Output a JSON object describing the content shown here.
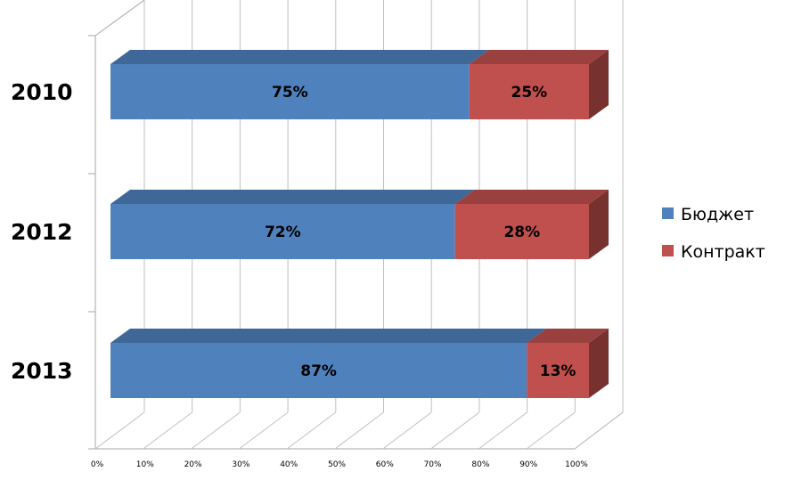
{
  "chart_data": {
    "type": "bar",
    "orientation": "horizontal",
    "stacked": "percent",
    "categories": [
      "2010",
      "2012",
      "2013"
    ],
    "series": [
      {
        "name": "Бюджет",
        "values": [
          75,
          72,
          87
        ],
        "labels": [
          "75%",
          "72%",
          "87%"
        ],
        "color": "#4f81bd"
      },
      {
        "name": "Контракт",
        "values": [
          25,
          28,
          13
        ],
        "labels": [
          "25%",
          "28%",
          "13%"
        ],
        "color": "#c0504d"
      }
    ],
    "x_ticks": [
      "0%",
      "10%",
      "20%",
      "30%",
      "40%",
      "50%",
      "60%",
      "70%",
      "80%",
      "90%",
      "100%"
    ],
    "xlim": [
      0,
      100
    ],
    "grid": true,
    "legend_position": "right",
    "style": "3d"
  }
}
